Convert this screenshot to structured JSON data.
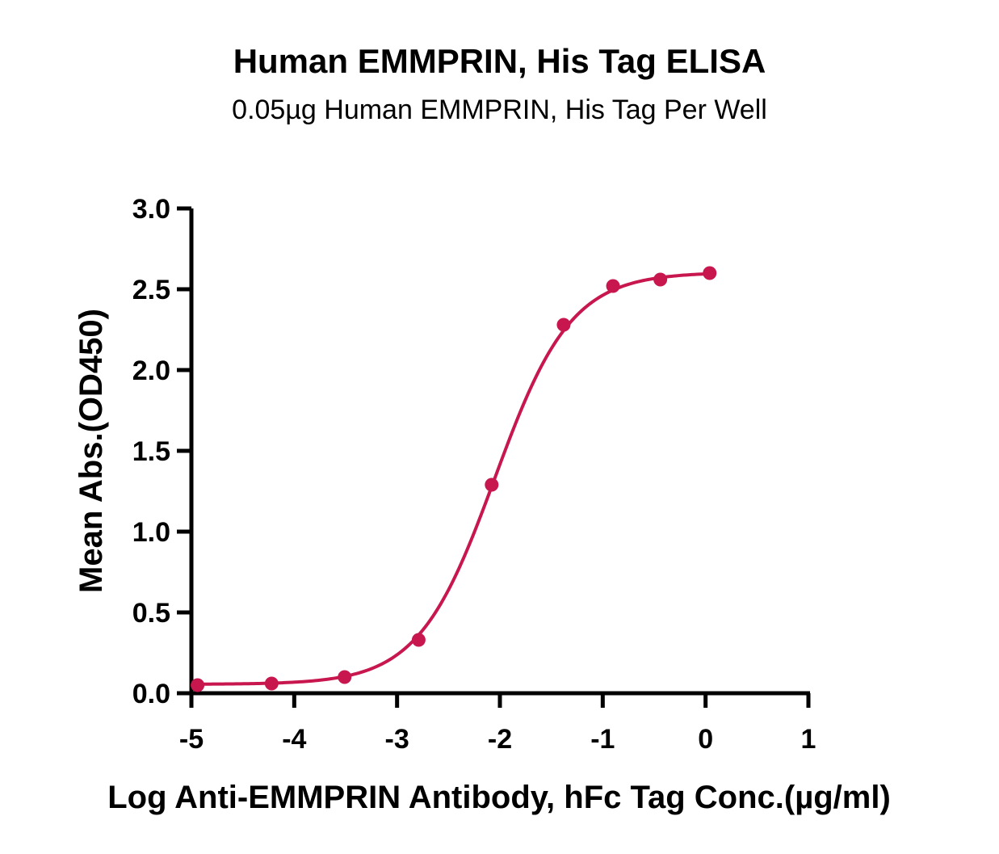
{
  "chart_data": {
    "type": "scatter",
    "title": "Human EMMPRIN, His Tag ELISA",
    "subtitle": "0.05µg Human EMMPRIN, His Tag Per Well",
    "xlabel": "Log Anti-EMMPRIN Antibody, hFc Tag Conc.(µg/ml)",
    "ylabel": "Mean Abs.(OD450)",
    "xlim": [
      -5,
      1
    ],
    "ylim": [
      0,
      3.0
    ],
    "x_ticks": [
      -5,
      -4,
      -3,
      -2,
      -1,
      0,
      1
    ],
    "x_tick_labels": [
      "-5",
      "-4",
      "-3",
      "-2",
      "-1",
      "0",
      "1"
    ],
    "y_ticks": [
      0,
      0.5,
      1.0,
      1.5,
      2.0,
      2.5,
      3.0
    ],
    "y_tick_labels": [
      "0.0",
      "0.5",
      "1.0",
      "1.5",
      "2.0",
      "2.5",
      "3.0"
    ],
    "grid": false,
    "series": [
      {
        "x": [
          -4.94,
          -4.22,
          -3.51,
          -2.79,
          -2.08,
          -1.38,
          -0.9,
          -0.44,
          0.04
        ],
        "y": [
          0.05,
          0.06,
          0.1,
          0.33,
          1.29,
          2.28,
          2.52,
          2.56,
          2.6
        ],
        "fit": "4PL",
        "color": "#c8174f"
      }
    ]
  }
}
